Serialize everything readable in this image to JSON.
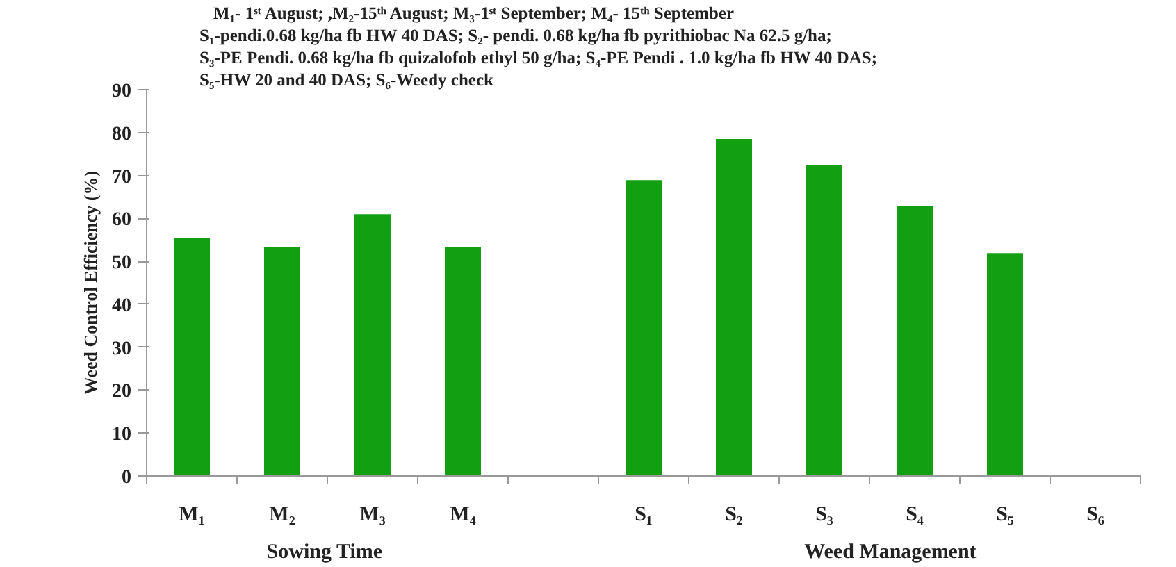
{
  "chart_data": {
    "type": "bar",
    "ylabel": "Weed Control Efficiency (%)",
    "categories": [
      "M₁",
      "M₂",
      "M₃",
      "M₄",
      null,
      "S₁",
      "S₂",
      "S₃",
      "S₄",
      "S₅",
      "S₆"
    ],
    "values": [
      55.4,
      53.3,
      61.0,
      53.3,
      null,
      68.9,
      78.5,
      72.4,
      62.8,
      51.9,
      0
    ],
    "color": "#12a012",
    "ylim": [
      0,
      90
    ],
    "yticks": [
      0,
      10,
      20,
      30,
      40,
      50,
      60,
      70,
      80,
      90
    ],
    "grid": false,
    "annotations": [
      "M₁- 1ˢᵗ August;  ,M₂-15ᵗʰ August;  M₃-1ˢᵗ September; M₄- 15ᵗʰ September",
      "S₁-pendi.0.68 kg/ha fb HW 40 DAS;  S₂- pendi.  0.68 kg/ha fb pyrithiobac Na 62.5 g/ha;",
      "S₃-PE Pendi. 0.68 kg/ha fb  quizalofob ethyl 50 g/ha;  S₄-PE Pendi . 1.0 kg/ha fb HW 40 DAS;",
      "S₅-HW 20 and 40 DAS;  S₆-Weedy check",
      "Sowing Time",
      "Weed Management"
    ]
  }
}
